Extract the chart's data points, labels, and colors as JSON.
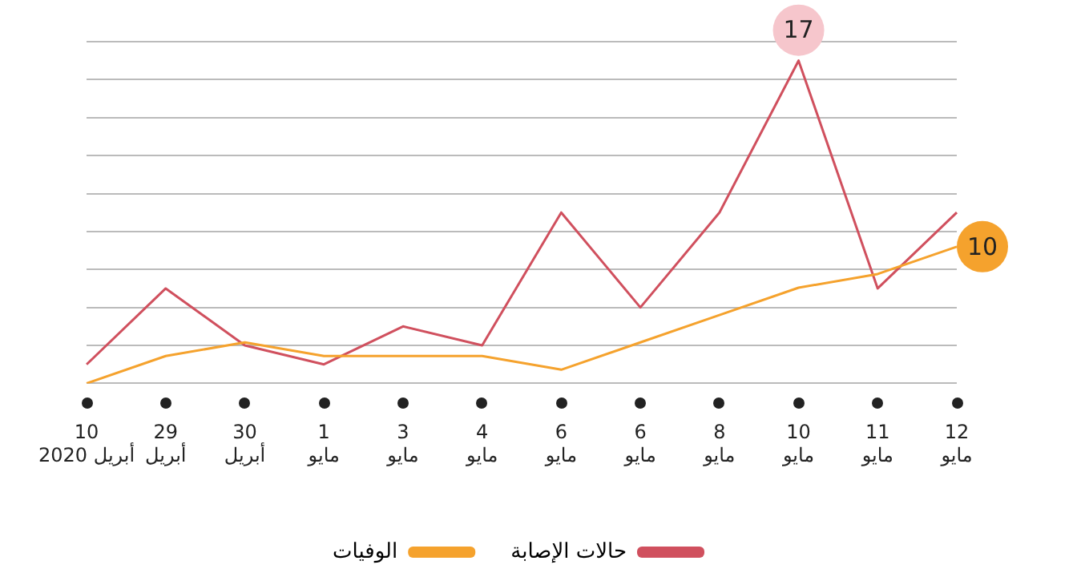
{
  "chart_data": {
    "type": "line",
    "grid": "y",
    "legend": "bottom",
    "marker": "none",
    "line_style": "solid",
    "tick_labels": "x",
    "ylim": [
      0,
      18
    ],
    "yticks": [
      {
        "value": 0,
        "label": null
      },
      {
        "value": 2,
        "label": null
      },
      {
        "value": 4,
        "label": null
      },
      {
        "value": 6,
        "label": null
      },
      {
        "value": 8,
        "label": null
      },
      {
        "value": 10,
        "label": null
      },
      {
        "value": 12,
        "label": null
      },
      {
        "value": 14,
        "label": null
      },
      {
        "value": 16,
        "label": null
      },
      {
        "value": 18,
        "label": null
      }
    ],
    "y2lim": [
      0,
      25
    ],
    "categories": [
      "10\nأبريل 2020",
      "29\nأبريل",
      "30\nأبريل",
      "1\nمايو",
      "3\nمايو",
      "4\nمايو",
      "6\nمايو",
      "6\nمايو",
      "8\nمايو",
      "10\nمايو",
      "11\nمايو",
      "12\nمايو"
    ],
    "series": [
      {
        "name": "حالات الإصابة",
        "color": "#d0505e",
        "values": [
          1,
          5,
          2,
          1,
          3,
          2,
          9,
          4,
          9,
          17,
          5,
          9
        ],
        "value_labels": [
          null,
          null,
          null,
          null,
          null,
          null,
          null,
          null,
          null,
          "17",
          null,
          null
        ]
      },
      {
        "name": "الوفيات",
        "color": "#f5a22d",
        "axis": "y2",
        "values": [
          0,
          2,
          3,
          2,
          2,
          2,
          1,
          3,
          5,
          7,
          8,
          10
        ],
        "value_labels": [
          null,
          null,
          null,
          null,
          null,
          null,
          null,
          null,
          null,
          null,
          null,
          "10"
        ]
      }
    ]
  }
}
